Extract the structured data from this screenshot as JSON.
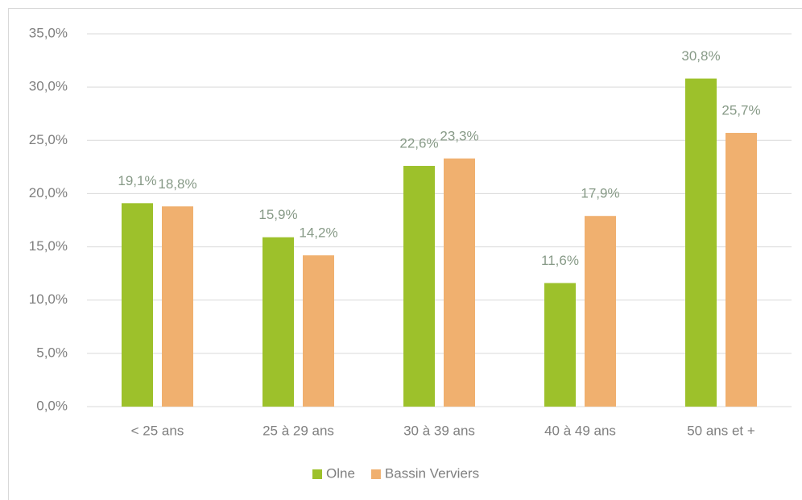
{
  "chart_data": {
    "type": "bar",
    "categories": [
      "< 25 ans",
      "25 à 29 ans",
      "30 à 39 ans",
      "40 à 49 ans",
      "50 ans et +"
    ],
    "series": [
      {
        "name": "Olne",
        "color": "#9dc12b",
        "values": [
          19.1,
          15.9,
          22.6,
          11.6,
          30.8
        ],
        "value_labels": [
          "19,1%",
          "15,9%",
          "22,6%",
          "11,6%",
          "30,8%"
        ]
      },
      {
        "name": "Bassin Verviers",
        "color": "#f0b06f",
        "values": [
          18.8,
          14.2,
          23.3,
          17.9,
          25.7
        ],
        "value_labels": [
          "18,8%",
          "14,2%",
          "23,3%",
          "17,9%",
          "25,7%"
        ]
      }
    ],
    "ylim": [
      0,
      35
    ],
    "yticks": [
      {
        "value": 0,
        "label": "0,0%"
      },
      {
        "value": 5,
        "label": "5,0%"
      },
      {
        "value": 10,
        "label": "10,0%"
      },
      {
        "value": 15,
        "label": "15,0%"
      },
      {
        "value": 20,
        "label": "20,0%"
      },
      {
        "value": 25,
        "label": "25,0%"
      },
      {
        "value": 30,
        "label": "30,0%"
      },
      {
        "value": 35,
        "label": "35,0%"
      }
    ],
    "grid": true,
    "legend": "bottom"
  }
}
